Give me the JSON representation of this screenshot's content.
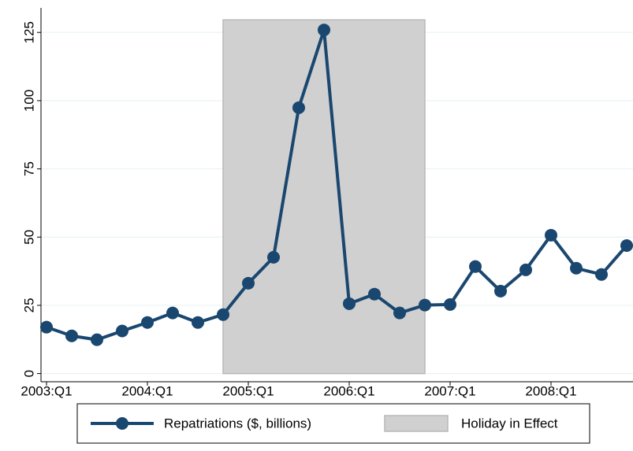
{
  "chart_data": {
    "type": "line",
    "categories": [
      "2003:Q1",
      null,
      null,
      null,
      "2004:Q1",
      null,
      null,
      null,
      "2005:Q1",
      null,
      null,
      null,
      "2006:Q1",
      null,
      null,
      null,
      "2007:Q1",
      null,
      null,
      null,
      "2008:Q1",
      null,
      null,
      null
    ],
    "series": [
      {
        "name": "Repatriations ($, billions)",
        "color": "#1a476f",
        "type": "line",
        "values": [
          17,
          13.8,
          12.4,
          15.6,
          18.7,
          22.2,
          18.7,
          21.6,
          33.1,
          42.6,
          97.4,
          125.9,
          25.6,
          29.1,
          22.2,
          25.1,
          25.3,
          39.2,
          30.2,
          38,
          50.7,
          38.6,
          36.3,
          46.9
        ]
      },
      {
        "name": "Holiday in Effect",
        "color": "#d0d0d0",
        "type": "area",
        "values": [
          null,
          null,
          null,
          null,
          null,
          null,
          null,
          129.6,
          129.6,
          129.6,
          129.6,
          129.6,
          129.6,
          129.6,
          129.6,
          129.6,
          null,
          null,
          null,
          null,
          null,
          null,
          null,
          null
        ]
      }
    ],
    "ylim": [
      -3,
      134
    ],
    "yticks": [
      0,
      25,
      50,
      75,
      100,
      125
    ],
    "grid": true
  }
}
